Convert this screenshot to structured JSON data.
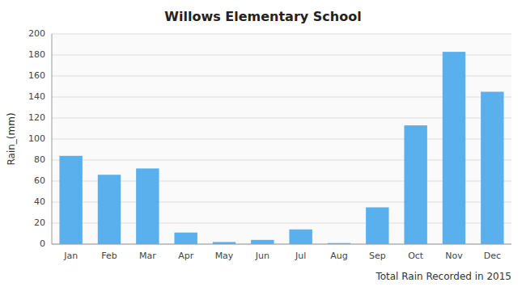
{
  "chart_data": {
    "type": "bar",
    "title": "Willows Elementary School",
    "xlabel": "Total Rain Recorded in 2015",
    "ylabel": "Rain_(mm)",
    "categories": [
      "Jan",
      "Feb",
      "Mar",
      "Apr",
      "May",
      "Jun",
      "Jul",
      "Aug",
      "Sep",
      "Oct",
      "Nov",
      "Dec"
    ],
    "values": [
      84,
      66,
      72,
      11,
      2,
      4,
      14,
      1,
      35,
      113,
      183,
      145
    ],
    "color": "#5aafed",
    "ylim": [
      0,
      200
    ],
    "yticks": [
      0,
      20,
      40,
      60,
      80,
      100,
      120,
      140,
      160,
      180,
      200
    ],
    "grid": true
  }
}
